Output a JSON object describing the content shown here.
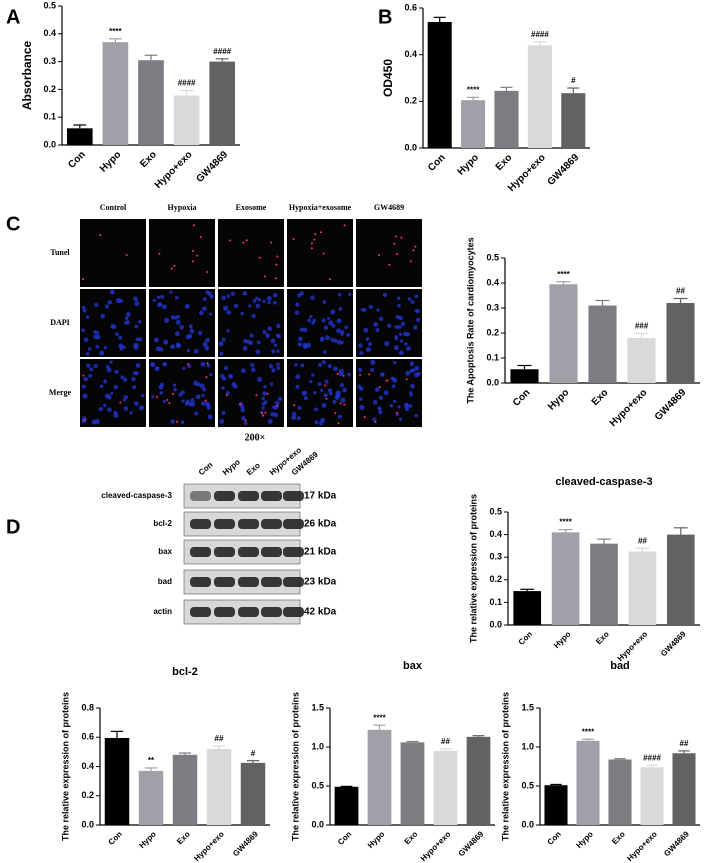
{
  "panel_labels": [
    "A",
    "B",
    "C",
    "D"
  ],
  "micrograph": {
    "columns": [
      "Control",
      "Hypoxia",
      "Exosome",
      "Hypoxia+exosome",
      "GW4689"
    ],
    "rows": [
      "Tunel",
      "DAPI",
      "Merge"
    ],
    "magnification": "200×"
  },
  "blot": {
    "lanes": [
      "Con",
      "Hypo",
      "Exo",
      "Hypo+exo",
      "GW4869"
    ],
    "proteins": [
      "cleaved-caspase-3",
      "bcl-2",
      "bax",
      "bad",
      "actin"
    ],
    "sizes": [
      "17 kDa",
      "26 kDa",
      "21 kDa",
      "23 kDa",
      "42 kDa"
    ]
  },
  "chart_data": [
    {
      "type": "bar",
      "ylabel": "Absorbance",
      "categories": [
        "Con",
        "Hypo",
        "Exo",
        "Hypo+exo",
        "GW4869"
      ],
      "values": [
        0.06,
        0.37,
        0.305,
        0.178,
        0.3
      ],
      "errors": [
        0.012,
        0.012,
        0.018,
        0.018,
        0.01
      ],
      "annotations": [
        null,
        "****",
        null,
        "####",
        "####"
      ],
      "colors": [
        "#000000",
        "#a0a0a8",
        "#7c7c82",
        "#d9d9d9",
        "#626262"
      ],
      "ylim": [
        0,
        0.5
      ],
      "yticks": [
        {
          "value": 0,
          "label": "0.0"
        },
        0.1,
        0.2,
        0.3,
        0.4,
        0.5
      ]
    },
    {
      "type": "bar",
      "ylabel": "OD450",
      "categories": [
        "Con",
        "Hypo",
        "Exo",
        "Hypo+exo",
        "GW4869"
      ],
      "values": [
        0.54,
        0.205,
        0.245,
        0.44,
        0.235
      ],
      "errors": [
        0.02,
        0.012,
        0.015,
        0.015,
        0.022
      ],
      "annotations": [
        null,
        "****",
        null,
        "####",
        "#"
      ],
      "colors": [
        "#000000",
        "#a0a0a8",
        "#7c7c82",
        "#d9d9d9",
        "#626262"
      ],
      "ylim": [
        0,
        0.6
      ],
      "yticks": [
        {
          "value": 0,
          "label": "0.0"
        },
        0.2,
        0.4,
        0.6
      ]
    },
    {
      "type": "bar",
      "ylabel": "The Apoptosis Rate of cardiomyocytes",
      "categories": [
        "Con",
        "Hypo",
        "Exo",
        "Hypo+exo",
        "GW4869"
      ],
      "values": [
        0.055,
        0.395,
        0.31,
        0.18,
        0.32
      ],
      "errors": [
        0.015,
        0.01,
        0.02,
        0.018,
        0.018
      ],
      "annotations": [
        null,
        "****",
        null,
        "###",
        "##"
      ],
      "colors": [
        "#000000",
        "#a0a0a8",
        "#7c7c82",
        "#d9d9d9",
        "#626262"
      ],
      "ylim": [
        0,
        0.5
      ],
      "yticks": [
        {
          "value": 0,
          "label": "0.0"
        },
        0.1,
        0.2,
        0.3,
        0.4,
        0.5
      ]
    },
    {
      "type": "bar",
      "title": "cleaved-caspase-3",
      "ylabel": "The  relative expression of proteins",
      "categories": [
        "Con",
        "Hypo",
        "Exo",
        "Hypo+exo",
        "GW4869"
      ],
      "values": [
        0.15,
        0.41,
        0.36,
        0.325,
        0.4
      ],
      "errors": [
        0.008,
        0.012,
        0.02,
        0.015,
        0.03
      ],
      "annotations": [
        null,
        "****",
        null,
        "##",
        null
      ],
      "colors": [
        "#000000",
        "#a0a0a8",
        "#7c7c82",
        "#d9d9d9",
        "#626262"
      ],
      "ylim": [
        0,
        0.5
      ],
      "yticks": [
        {
          "value": 0,
          "label": "0.0"
        },
        0.1,
        0.2,
        0.3,
        0.4,
        0.5
      ]
    },
    {
      "type": "bar",
      "title": "bcl-2",
      "ylabel": "The  relative expression of proteins",
      "categories": [
        "Con",
        "Hypo",
        "Exo",
        "Hypo+exo",
        "GW4869"
      ],
      "values": [
        0.595,
        0.37,
        0.48,
        0.52,
        0.425
      ],
      "errors": [
        0.045,
        0.02,
        0.012,
        0.02,
        0.015
      ],
      "annotations": [
        null,
        "**",
        null,
        "##",
        "#"
      ],
      "colors": [
        "#000000",
        "#a0a0a8",
        "#7c7c82",
        "#d9d9d9",
        "#626262"
      ],
      "ylim": [
        0,
        0.8
      ],
      "yticks": [
        {
          "value": 0,
          "label": "0.0"
        },
        0.2,
        0.4,
        0.6,
        0.8
      ]
    },
    {
      "type": "bar",
      "title": "bax",
      "ylabel": "The  relative expression of proteins",
      "categories": [
        "Con",
        "Hypo",
        "Exo",
        "Hypo+exo",
        "GW4869"
      ],
      "values": [
        0.49,
        1.22,
        1.06,
        0.95,
        1.13
      ],
      "errors": [
        0.005,
        0.06,
        0.01,
        0.025,
        0.015
      ],
      "annotations": [
        null,
        "****",
        null,
        "##",
        null
      ],
      "colors": [
        "#000000",
        "#a0a0a8",
        "#7c7c82",
        "#d9d9d9",
        "#626262"
      ],
      "ylim": [
        0,
        1.5
      ],
      "yticks": [
        {
          "value": 0,
          "label": "0.0"
        },
        0.5,
        {
          "value": 1,
          "label": "1.0"
        },
        1.5
      ]
    },
    {
      "type": "bar",
      "title": "bad",
      "ylabel": "The  relative expression of proteins",
      "categories": [
        "Con",
        "Hypo",
        "Exo",
        "Hypo+exo",
        "GW4869"
      ],
      "values": [
        0.51,
        1.08,
        0.84,
        0.74,
        0.92
      ],
      "errors": [
        0.01,
        0.02,
        0.01,
        0.025,
        0.03
      ],
      "annotations": [
        null,
        "****",
        null,
        "####",
        "##"
      ],
      "colors": [
        "#000000",
        "#a0a0a8",
        "#7c7c82",
        "#d9d9d9",
        "#626262"
      ],
      "ylim": [
        0,
        1.5
      ],
      "yticks": [
        {
          "value": 0,
          "label": "0.0"
        },
        0.5,
        {
          "value": 1,
          "label": "1.0"
        },
        1.5
      ]
    }
  ]
}
